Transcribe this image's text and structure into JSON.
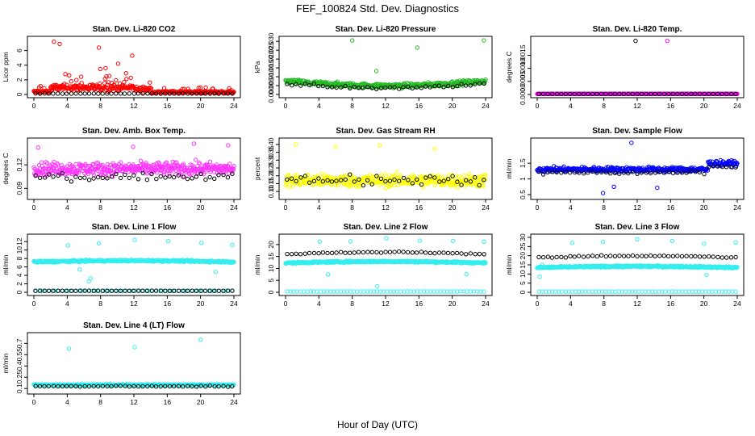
{
  "figure": {
    "title": "FEF_100824  Std. Dev. Diagnostics",
    "xlabel": "Hour of Day (UTC)"
  },
  "chart_data": [
    {
      "type": "scatter",
      "title": "Stan. Dev. Li-820 CO2",
      "ylabel": "Licor ppm",
      "xlim": [
        0,
        24
      ],
      "ylim": [
        0,
        7.5
      ],
      "xticks": [
        0,
        4,
        8,
        12,
        16,
        20,
        24
      ],
      "yticks": [
        0,
        2,
        4,
        6
      ],
      "ytick_labels": [
        "0",
        "2",
        "4",
        "6"
      ],
      "series": [
        {
          "color": "#ff0000",
          "base": 0.55,
          "noise": 0.5,
          "env": "co2",
          "outliers": [
            [
              2.4,
              7.2
            ],
            [
              3.1,
              6.9
            ],
            [
              7.8,
              6.4
            ],
            [
              11.8,
              5.3
            ],
            [
              8.6,
              3.6
            ],
            [
              10.1,
              4.2
            ]
          ]
        },
        {
          "color": "#000000",
          "base": 0.12,
          "noise": 0.04,
          "count": 45
        }
      ]
    },
    {
      "type": "scatter",
      "title": "Stan. Dev. Li-820 Pressure",
      "ylabel": "kPa",
      "xlim": [
        0,
        24
      ],
      "ylim": [
        0,
        0.031
      ],
      "xticks": [
        0,
        4,
        8,
        12,
        16,
        20,
        24
      ],
      "yticks": [
        0,
        0.005,
        0.01,
        0.015,
        0.02,
        0.025,
        0.03
      ],
      "ytick_labels": [
        "0.000",
        "0.005",
        "0.010",
        "0.015",
        "0.020",
        "0.025",
        "0.030"
      ],
      "series": [
        {
          "color": "#22bb22",
          "base": 0.0075,
          "noise": 0.0022,
          "env": "bowl",
          "outliers": [
            [
              8.0,
              0.0305
            ],
            [
              10.9,
              0.0132
            ],
            [
              15.8,
              0.0265
            ],
            [
              23.8,
              0.0305
            ]
          ]
        },
        {
          "color": "#000000",
          "base": 0.006,
          "noise": 0.0015,
          "count": 45,
          "env": "bowl"
        }
      ]
    },
    {
      "type": "scatter",
      "title": "Stan. Dev. Li-820 Temp.",
      "ylabel": "degrees C",
      "xlim": [
        0,
        24
      ],
      "ylim": [
        0,
        0.0021
      ],
      "xticks": [
        0,
        4,
        8,
        12,
        16,
        20,
        24
      ],
      "yticks": [
        0,
        0.0005,
        0.001,
        0.0015
      ],
      "ytick_labels": [
        "0.0000",
        "0.0005",
        "0.0010",
        "0.0015"
      ],
      "series": [
        {
          "color": "#ff00ff",
          "base": 0,
          "noise": 0,
          "outliers": [
            [
              15.6,
              0.00205
            ]
          ]
        },
        {
          "color": "#000000",
          "base": 0,
          "noise": 0,
          "count": 45,
          "outliers": [
            [
              11.8,
              0.00205
            ]
          ]
        }
      ]
    },
    {
      "type": "scatter",
      "title": "Stan. Dev. Amb. Box Temp.",
      "ylabel": "degrees C",
      "xlim": [
        0,
        24
      ],
      "ylim": [
        0.08,
        0.15
      ],
      "xticks": [
        0,
        4,
        8,
        12,
        16,
        20,
        24
      ],
      "yticks": [
        0.09,
        0.12
      ],
      "ytick_labels": [
        "0.09",
        "0.12"
      ],
      "series": [
        {
          "color": "#ff33ff",
          "base": 0.115,
          "noise": 0.014,
          "outliers": [
            [
              0.5,
              0.142
            ],
            [
              11.9,
              0.143
            ],
            [
              19.2,
              0.147
            ],
            [
              23.3,
              0.145
            ]
          ]
        },
        {
          "color": "#000000",
          "base": 0.105,
          "noise": 0.008,
          "count": 45
        }
      ]
    },
    {
      "type": "scatter",
      "title": "Stan. Dev. Gas Stream RH",
      "ylabel": "percent",
      "xlim": [
        0,
        24
      ],
      "ylim": [
        0.07,
        0.42
      ],
      "xticks": [
        0,
        4,
        8,
        12,
        16,
        20,
        24
      ],
      "yticks": [
        0.1,
        0.15,
        0.2,
        0.25,
        0.3,
        0.35,
        0.4
      ],
      "ytick_labels": [
        "0.10",
        "0.15",
        "0.20",
        "0.25",
        "0.30",
        "0.35",
        "0.40"
      ],
      "series": [
        {
          "color": "#ffff00",
          "base": 0.17,
          "noise": 0.07,
          "outliers": [
            [
              1.2,
              0.4
            ],
            [
              6.0,
              0.385
            ],
            [
              11.3,
              0.395
            ],
            [
              17.9,
              0.372
            ]
          ]
        },
        {
          "color": "#000000",
          "base": 0.17,
          "noise": 0.06,
          "count": 45
        }
      ]
    },
    {
      "type": "scatter",
      "title": "Stan. Dev. Sample Flow",
      "ylabel": "ml/min",
      "xlim": [
        0,
        24
      ],
      "ylim": [
        0.45,
        2.2
      ],
      "xticks": [
        0,
        4,
        8,
        12,
        16,
        20,
        24
      ],
      "yticks": [
        0.5,
        1,
        1.5
      ],
      "ytick_labels": [
        "0.5",
        "1",
        "1.5"
      ],
      "series": [
        {
          "color": "#0000ff",
          "base": 1.3,
          "noise": 0.14,
          "env": "flow",
          "outliers": [
            [
              11.3,
              2.15
            ],
            [
              7.9,
              0.55
            ],
            [
              9.2,
              0.75
            ],
            [
              14.4,
              0.72
            ]
          ]
        },
        {
          "color": "#000000",
          "base": 1.2,
          "noise": 0.08,
          "count": 45,
          "env": "flow"
        }
      ]
    },
    {
      "type": "scatter",
      "title": "Stan. Dev. Line 1 Flow",
      "ylabel": "ml/min",
      "xlim": [
        0,
        24
      ],
      "ylim": [
        0,
        13
      ],
      "xticks": [
        0,
        4,
        8,
        12,
        16,
        20,
        24
      ],
      "yticks": [
        0,
        2,
        4,
        6,
        8,
        10,
        12
      ],
      "ytick_labels": [
        "0",
        "2",
        "4",
        "6",
        "8",
        "10",
        "12"
      ],
      "series": [
        {
          "color": "#33eeee",
          "base": 7.2,
          "noise": 0.35,
          "env": "line1",
          "outliers": [
            [
              4.1,
              11.1
            ],
            [
              7.8,
              11.6
            ],
            [
              12.1,
              12.4
            ],
            [
              16.1,
              12.1
            ],
            [
              20.1,
              11.7
            ],
            [
              23.8,
              11.2
            ],
            [
              6.6,
              2.6
            ],
            [
              6.8,
              3.3
            ],
            [
              5.5,
              5.4
            ],
            [
              21.8,
              4.8
            ]
          ]
        },
        {
          "color": "#33eeee",
          "base": 0.35,
          "noise": 0.03,
          "count": 60
        },
        {
          "color": "#000000",
          "base": 0.35,
          "noise": 0.03,
          "count": 45
        }
      ]
    },
    {
      "type": "scatter",
      "title": "Stan. Dev. Line 2 Flow",
      "ylabel": "ml/min",
      "xlim": [
        0,
        24
      ],
      "ylim": [
        0,
        23
      ],
      "xticks": [
        0,
        4,
        8,
        12,
        16,
        20,
        24
      ],
      "yticks": [
        0,
        5,
        10,
        15,
        20
      ],
      "ytick_labels": [
        "0",
        "5",
        "10",
        "15",
        "20"
      ],
      "series": [
        {
          "color": "#33eeee",
          "base": 12.3,
          "noise": 0.6,
          "env": "line2",
          "outliers": [
            [
              4.1,
              21.2
            ],
            [
              7.8,
              21.3
            ],
            [
              12.1,
              22.6
            ],
            [
              16.1,
              21.6
            ],
            [
              20.1,
              21.5
            ],
            [
              23.8,
              21.2
            ],
            [
              5.1,
              7.5
            ],
            [
              21.7,
              7.6
            ],
            [
              11.0,
              2.5
            ]
          ]
        },
        {
          "color": "#33eeee",
          "base": 0.35,
          "noise": 0.05,
          "count": 60
        },
        {
          "color": "#000000",
          "base": 16,
          "noise": 0.4,
          "count": 45,
          "env": "line2"
        }
      ]
    },
    {
      "type": "scatter",
      "title": "Stan. Dev. Line 3 Flow",
      "ylabel": "ml/min",
      "xlim": [
        0,
        24
      ],
      "ylim": [
        0,
        30
      ],
      "xticks": [
        0,
        4,
        8,
        12,
        16,
        20,
        24
      ],
      "yticks": [
        0,
        5,
        10,
        15,
        20,
        25,
        30
      ],
      "ytick_labels": [
        "0",
        "5",
        "10",
        "15",
        "20",
        "25",
        "30"
      ],
      "series": [
        {
          "color": "#33eeee",
          "base": 13.5,
          "noise": 0.8,
          "env": "line2",
          "outliers": [
            [
              4.2,
              27.0
            ],
            [
              7.9,
              27.5
            ],
            [
              12.0,
              29.0
            ],
            [
              16.2,
              28.0
            ],
            [
              20.0,
              26.5
            ],
            [
              23.8,
              27.2
            ],
            [
              0.3,
              8.5
            ],
            [
              0.6,
              15
            ],
            [
              20.3,
              9.5
            ]
          ]
        },
        {
          "color": "#33eeee",
          "base": 0.4,
          "noise": 0.05,
          "count": 60
        },
        {
          "color": "#000000",
          "base": 19,
          "noise": 0.6,
          "count": 45,
          "env": "line2"
        }
      ]
    },
    {
      "type": "scatter",
      "title": "Stan. Dev. Line 4 (LT) Flow",
      "ylabel": "ml/min",
      "xlim": [
        0,
        24
      ],
      "ylim": [
        0.07,
        0.8
      ],
      "xticks": [
        0,
        4,
        8,
        12,
        16,
        20,
        24
      ],
      "yticks": [
        0.1,
        0.25,
        0.4,
        0.55,
        0.7
      ],
      "ytick_labels": [
        "0.1",
        "0.25",
        "0.4",
        "0.55",
        "0.7"
      ],
      "series": [
        {
          "color": "#33eeee",
          "base": 0.15,
          "noise": 0.012,
          "outliers": [
            [
              4.2,
              0.63
            ],
            [
              12.1,
              0.65
            ],
            [
              20.0,
              0.75
            ]
          ]
        },
        {
          "color": "#000000",
          "base": 0.13,
          "noise": 0.012,
          "count": 45
        }
      ]
    }
  ]
}
